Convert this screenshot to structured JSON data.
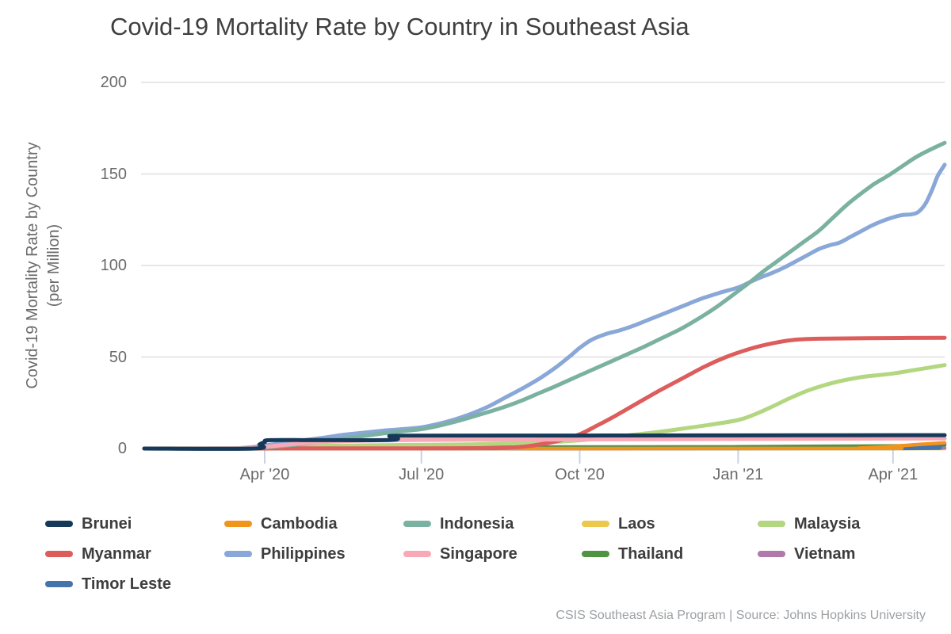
{
  "title": "Covid-19 Mortality Rate by Country in Southeast Asia",
  "footer": "CSIS Southeast Asia Program | Source: Johns Hopkins University",
  "y_axis": {
    "label_line1": "Covid-19 Mortality Rate by Country",
    "label_line2": "(per Million)",
    "ticks": [
      0,
      50,
      100,
      150,
      200
    ]
  },
  "x_axis": {
    "ticks": [
      {
        "label": "Apr '20",
        "day": 70
      },
      {
        "label": "Jul '20",
        "day": 161
      },
      {
        "label": "Oct '20",
        "day": 253
      },
      {
        "label": "Jan '21",
        "day": 345
      },
      {
        "label": "Apr '21",
        "day": 435
      }
    ]
  },
  "legend_order": [
    "Brunei",
    "Cambodia",
    "Indonesia",
    "Laos",
    "Malaysia",
    "Myanmar",
    "Philippines",
    "Singapore",
    "Thailand",
    "Vietnam",
    "Timor Leste"
  ],
  "style_colors": {
    "grid": "#e7e7e7",
    "axis": "#c9d2e4",
    "title_text": "#3f3f3f",
    "tick_text": "#6b6b6b",
    "legend_text": "#3d3d3d",
    "footer_text": "#9da0a3"
  },
  "chart_data": {
    "type": "line",
    "title": "Covid-19 Mortality Rate by Country in Southeast Asia",
    "xlabel": "",
    "ylabel": "Covid-19 Mortality Rate by Country (per Million)",
    "x_unit": "days since 2020-01-22",
    "x_domain": [
      0,
      465
    ],
    "ylim": [
      0,
      200
    ],
    "grid": "horizontal",
    "legend_position": "bottom",
    "series": [
      {
        "name": "Laos",
        "color": "#ecc84e",
        "width": 4.5,
        "points": [
          [
            0,
            0
          ],
          [
            465,
            0
          ]
        ]
      },
      {
        "name": "Vietnam",
        "color": "#b078ab",
        "width": 4.5,
        "points": [
          [
            0,
            0
          ],
          [
            190,
            0
          ],
          [
            200,
            0.2
          ],
          [
            212,
            0.34
          ],
          [
            225,
            0.36
          ],
          [
            465,
            0.37
          ]
        ]
      },
      {
        "name": "Thailand",
        "color": "#4f9343",
        "width": 4.5,
        "points": [
          [
            0,
            0
          ],
          [
            60,
            0.06
          ],
          [
            68,
            0.2
          ],
          [
            75,
            0.45
          ],
          [
            85,
            0.7
          ],
          [
            95,
            0.78
          ],
          [
            110,
            0.8
          ],
          [
            161,
            0.83
          ],
          [
            253,
            0.86
          ],
          [
            330,
            0.9
          ],
          [
            345,
            0.96
          ],
          [
            365,
            1.1
          ],
          [
            395,
            1.25
          ],
          [
            430,
            1.4
          ],
          [
            448,
            1.6
          ],
          [
            465,
            2.0
          ]
        ]
      },
      {
        "name": "Timor Leste",
        "color": "#4573ab",
        "width": 4.5,
        "points": [
          [
            0,
            0
          ],
          [
            428,
            0.05
          ],
          [
            438,
            0.8
          ],
          [
            448,
            1.5
          ],
          [
            456,
            1.9
          ],
          [
            465,
            2.3
          ]
        ]
      },
      {
        "name": "Cambodia",
        "color": "#f0941e",
        "width": 4.5,
        "points": [
          [
            0,
            0
          ],
          [
            408,
            0.05
          ],
          [
            415,
            0.25
          ],
          [
            422,
            0.5
          ],
          [
            430,
            0.9
          ],
          [
            438,
            1.4
          ],
          [
            448,
            2.1
          ],
          [
            456,
            2.6
          ],
          [
            465,
            3.1
          ]
        ]
      },
      {
        "name": "Malaysia",
        "color": "#b3d780",
        "width": 5,
        "points": [
          [
            0,
            0
          ],
          [
            62,
            0.25
          ],
          [
            70,
            0.5
          ],
          [
            85,
            1.0
          ],
          [
            100,
            1.4
          ],
          [
            125,
            1.75
          ],
          [
            161,
            2.0
          ],
          [
            190,
            2.3
          ],
          [
            215,
            2.8
          ],
          [
            235,
            3.5
          ],
          [
            253,
            4.5
          ],
          [
            268,
            5.9
          ],
          [
            283,
            7.4
          ],
          [
            298,
            9.0
          ],
          [
            313,
            10.9
          ],
          [
            328,
            12.9
          ],
          [
            345,
            15.6
          ],
          [
            355,
            18.8
          ],
          [
            365,
            23
          ],
          [
            375,
            27.5
          ],
          [
            385,
            31.5
          ],
          [
            395,
            34.6
          ],
          [
            405,
            37
          ],
          [
            418,
            39.2
          ],
          [
            435,
            41
          ],
          [
            448,
            43
          ],
          [
            458,
            44.5
          ],
          [
            465,
            45.6
          ]
        ]
      },
      {
        "name": "Myanmar",
        "color": "#dd5c5c",
        "width": 5,
        "points": [
          [
            0,
            0
          ],
          [
            70,
            0.06
          ],
          [
            100,
            0.11
          ],
          [
            161,
            0.11
          ],
          [
            200,
            0.2
          ],
          [
            212,
            0.5
          ],
          [
            222,
            1.2
          ],
          [
            232,
            2.6
          ],
          [
            242,
            4.6
          ],
          [
            253,
            7.8
          ],
          [
            263,
            12.5
          ],
          [
            273,
            17.5
          ],
          [
            285,
            24
          ],
          [
            298,
            31
          ],
          [
            313,
            38.5
          ],
          [
            326,
            45
          ],
          [
            338,
            50
          ],
          [
            352,
            54.5
          ],
          [
            365,
            57.5
          ],
          [
            378,
            59.4
          ],
          [
            392,
            60
          ],
          [
            420,
            60.3
          ],
          [
            465,
            60.5
          ]
        ]
      },
      {
        "name": "Philippines",
        "color": "#89a7d7",
        "width": 5,
        "points": [
          [
            0,
            0
          ],
          [
            48,
            0.1
          ],
          [
            58,
            0.4
          ],
          [
            64,
            0.9
          ],
          [
            70,
            1.7
          ],
          [
            78,
            2.7
          ],
          [
            85,
            3.5
          ],
          [
            95,
            4.8
          ],
          [
            105,
            6.0
          ],
          [
            115,
            7.4
          ],
          [
            128,
            8.7
          ],
          [
            140,
            9.9
          ],
          [
            150,
            10.6
          ],
          [
            161,
            11.6
          ],
          [
            170,
            13.3
          ],
          [
            180,
            15.8
          ],
          [
            190,
            19
          ],
          [
            200,
            23
          ],
          [
            210,
            28
          ],
          [
            220,
            33
          ],
          [
            230,
            38.5
          ],
          [
            240,
            45
          ],
          [
            248,
            51
          ],
          [
            253,
            55
          ],
          [
            260,
            59.5
          ],
          [
            268,
            62.5
          ],
          [
            276,
            64.5
          ],
          [
            284,
            67
          ],
          [
            292,
            70
          ],
          [
            300,
            73
          ],
          [
            308,
            76
          ],
          [
            316,
            79
          ],
          [
            324,
            82
          ],
          [
            334,
            85
          ],
          [
            345,
            88
          ],
          [
            352,
            91
          ],
          [
            358,
            93.5
          ],
          [
            365,
            96
          ],
          [
            372,
            99
          ],
          [
            380,
            103
          ],
          [
            386,
            106
          ],
          [
            392,
            109
          ],
          [
            398,
            111
          ],
          [
            404,
            112.5
          ],
          [
            410,
            115.5
          ],
          [
            416,
            118.5
          ],
          [
            422,
            121.5
          ],
          [
            428,
            124
          ],
          [
            434,
            126
          ],
          [
            440,
            127.5
          ],
          [
            446,
            128
          ],
          [
            450,
            129.5
          ],
          [
            454,
            134
          ],
          [
            458,
            142
          ],
          [
            461,
            149
          ],
          [
            465,
            155
          ]
        ]
      },
      {
        "name": "Indonesia",
        "color": "#7ab1a0",
        "width": 5,
        "points": [
          [
            0,
            0
          ],
          [
            50,
            0.15
          ],
          [
            60,
            0.4
          ],
          [
            70,
            0.65
          ],
          [
            80,
            1.4
          ],
          [
            90,
            2.3
          ],
          [
            100,
            3.3
          ],
          [
            110,
            4.6
          ],
          [
            120,
            5.9
          ],
          [
            130,
            7.2
          ],
          [
            140,
            8.4
          ],
          [
            150,
            9.5
          ],
          [
            161,
            10.6
          ],
          [
            170,
            12.2
          ],
          [
            180,
            14.5
          ],
          [
            190,
            17.2
          ],
          [
            200,
            20
          ],
          [
            210,
            23
          ],
          [
            220,
            26.5
          ],
          [
            230,
            30.5
          ],
          [
            240,
            34.5
          ],
          [
            253,
            40
          ],
          [
            265,
            45
          ],
          [
            277,
            50
          ],
          [
            289,
            55
          ],
          [
            300,
            60
          ],
          [
            312,
            65.5
          ],
          [
            322,
            71
          ],
          [
            332,
            77
          ],
          [
            345,
            86
          ],
          [
            352,
            91
          ],
          [
            360,
            97
          ],
          [
            368,
            102.5
          ],
          [
            376,
            108
          ],
          [
            384,
            113.5
          ],
          [
            392,
            119
          ],
          [
            400,
            126
          ],
          [
            408,
            133
          ],
          [
            416,
            139
          ],
          [
            424,
            144.5
          ],
          [
            432,
            149
          ],
          [
            440,
            154
          ],
          [
            448,
            159
          ],
          [
            456,
            163
          ],
          [
            465,
            167
          ]
        ]
      },
      {
        "name": "Singapore",
        "color": "#f9a9b6",
        "width": 5,
        "points": [
          [
            0,
            0
          ],
          [
            56,
            0.05
          ],
          [
            62,
            0.3
          ],
          [
            70,
            0.9
          ],
          [
            78,
            1.7
          ],
          [
            86,
            2.4
          ],
          [
            94,
            3.0
          ],
          [
            102,
            3.5
          ],
          [
            112,
            3.9
          ],
          [
            122,
            4.2
          ],
          [
            135,
            4.5
          ],
          [
            150,
            4.6
          ],
          [
            165,
            4.7
          ],
          [
            190,
            4.8
          ],
          [
            220,
            4.9
          ],
          [
            253,
            5.0
          ],
          [
            290,
            5.1
          ],
          [
            330,
            5.2
          ],
          [
            370,
            5.3
          ],
          [
            420,
            5.4
          ],
          [
            465,
            5.5
          ]
        ]
      },
      {
        "name": "Brunei",
        "color": "#16395a",
        "width": 5,
        "points": [
          [
            0,
            0
          ],
          [
            64,
            0
          ],
          [
            67,
            2.3
          ],
          [
            70,
            3.5
          ],
          [
            73,
            4.6
          ],
          [
            100,
            4.6
          ],
          [
            143,
            4.7
          ],
          [
            147,
            6.2
          ],
          [
            151,
            7.0
          ],
          [
            253,
            7.1
          ],
          [
            345,
            7.2
          ],
          [
            465,
            7.3
          ]
        ]
      }
    ]
  }
}
